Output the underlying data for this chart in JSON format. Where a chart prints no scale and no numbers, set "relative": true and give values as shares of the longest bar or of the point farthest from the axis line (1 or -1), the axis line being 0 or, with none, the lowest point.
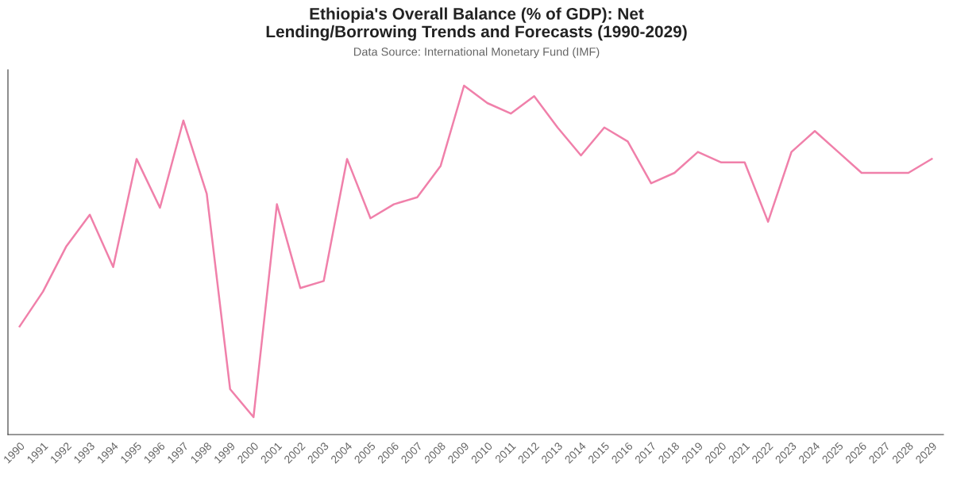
{
  "chart_data": {
    "type": "line",
    "title": "Ethiopia's Overall Balance (% of GDP): Net\nLending/Borrowing Trends and Forecasts (1990-2029)",
    "subtitle": "Data Source: International Monetary Fund (IMF)",
    "relative": true,
    "categories": [
      "1990",
      "1991",
      "1992",
      "1993",
      "1994",
      "1995",
      "1996",
      "1997",
      "1998",
      "1999",
      "2000",
      "2001",
      "2002",
      "2003",
      "2004",
      "2005",
      "2006",
      "2007",
      "2008",
      "2009",
      "2010",
      "2011",
      "2012",
      "2013",
      "2014",
      "2015",
      "2016",
      "2017",
      "2018",
      "2019",
      "2020",
      "2021",
      "2022",
      "2023",
      "2024",
      "2025",
      "2026",
      "2027",
      "2028",
      "2029"
    ],
    "series": [
      {
        "color": "#f080aa",
        "values": [
          0.31,
          0.41,
          0.54,
          0.63,
          0.48,
          0.79,
          0.65,
          0.9,
          0.69,
          0.13,
          0.05,
          0.66,
          0.42,
          0.44,
          0.79,
          0.62,
          0.66,
          0.68,
          0.77,
          1,
          0.95,
          0.92,
          0.97,
          0.88,
          0.8,
          0.88,
          0.84,
          0.72,
          0.75,
          0.81,
          0.78,
          0.78,
          0.61,
          0.81,
          0.87,
          0.81,
          0.75,
          0.75,
          0.75,
          0.79
        ]
      }
    ],
    "grid": false,
    "legend": false,
    "marker": "none",
    "line_style": "solid"
  }
}
